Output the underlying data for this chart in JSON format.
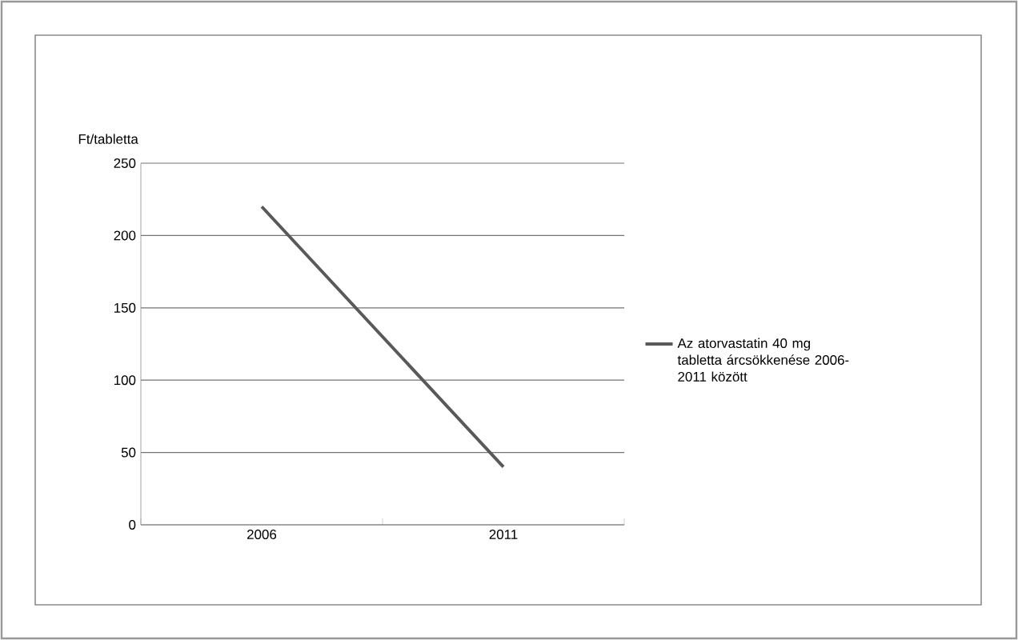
{
  "chart_data": {
    "type": "line",
    "ylabel": "Ft/tabletta",
    "categories": [
      "2006",
      "2011"
    ],
    "series": [
      {
        "name": "Az atorvastatin 40 mg tabletta árcsökkenése 2006-2011  között",
        "color": "#595959",
        "values": [
          220,
          40
        ]
      }
    ],
    "ylim": [
      0,
      250
    ],
    "yticks": [
      0,
      50,
      100,
      150,
      200,
      250
    ],
    "grid": "y",
    "legend": "right"
  }
}
